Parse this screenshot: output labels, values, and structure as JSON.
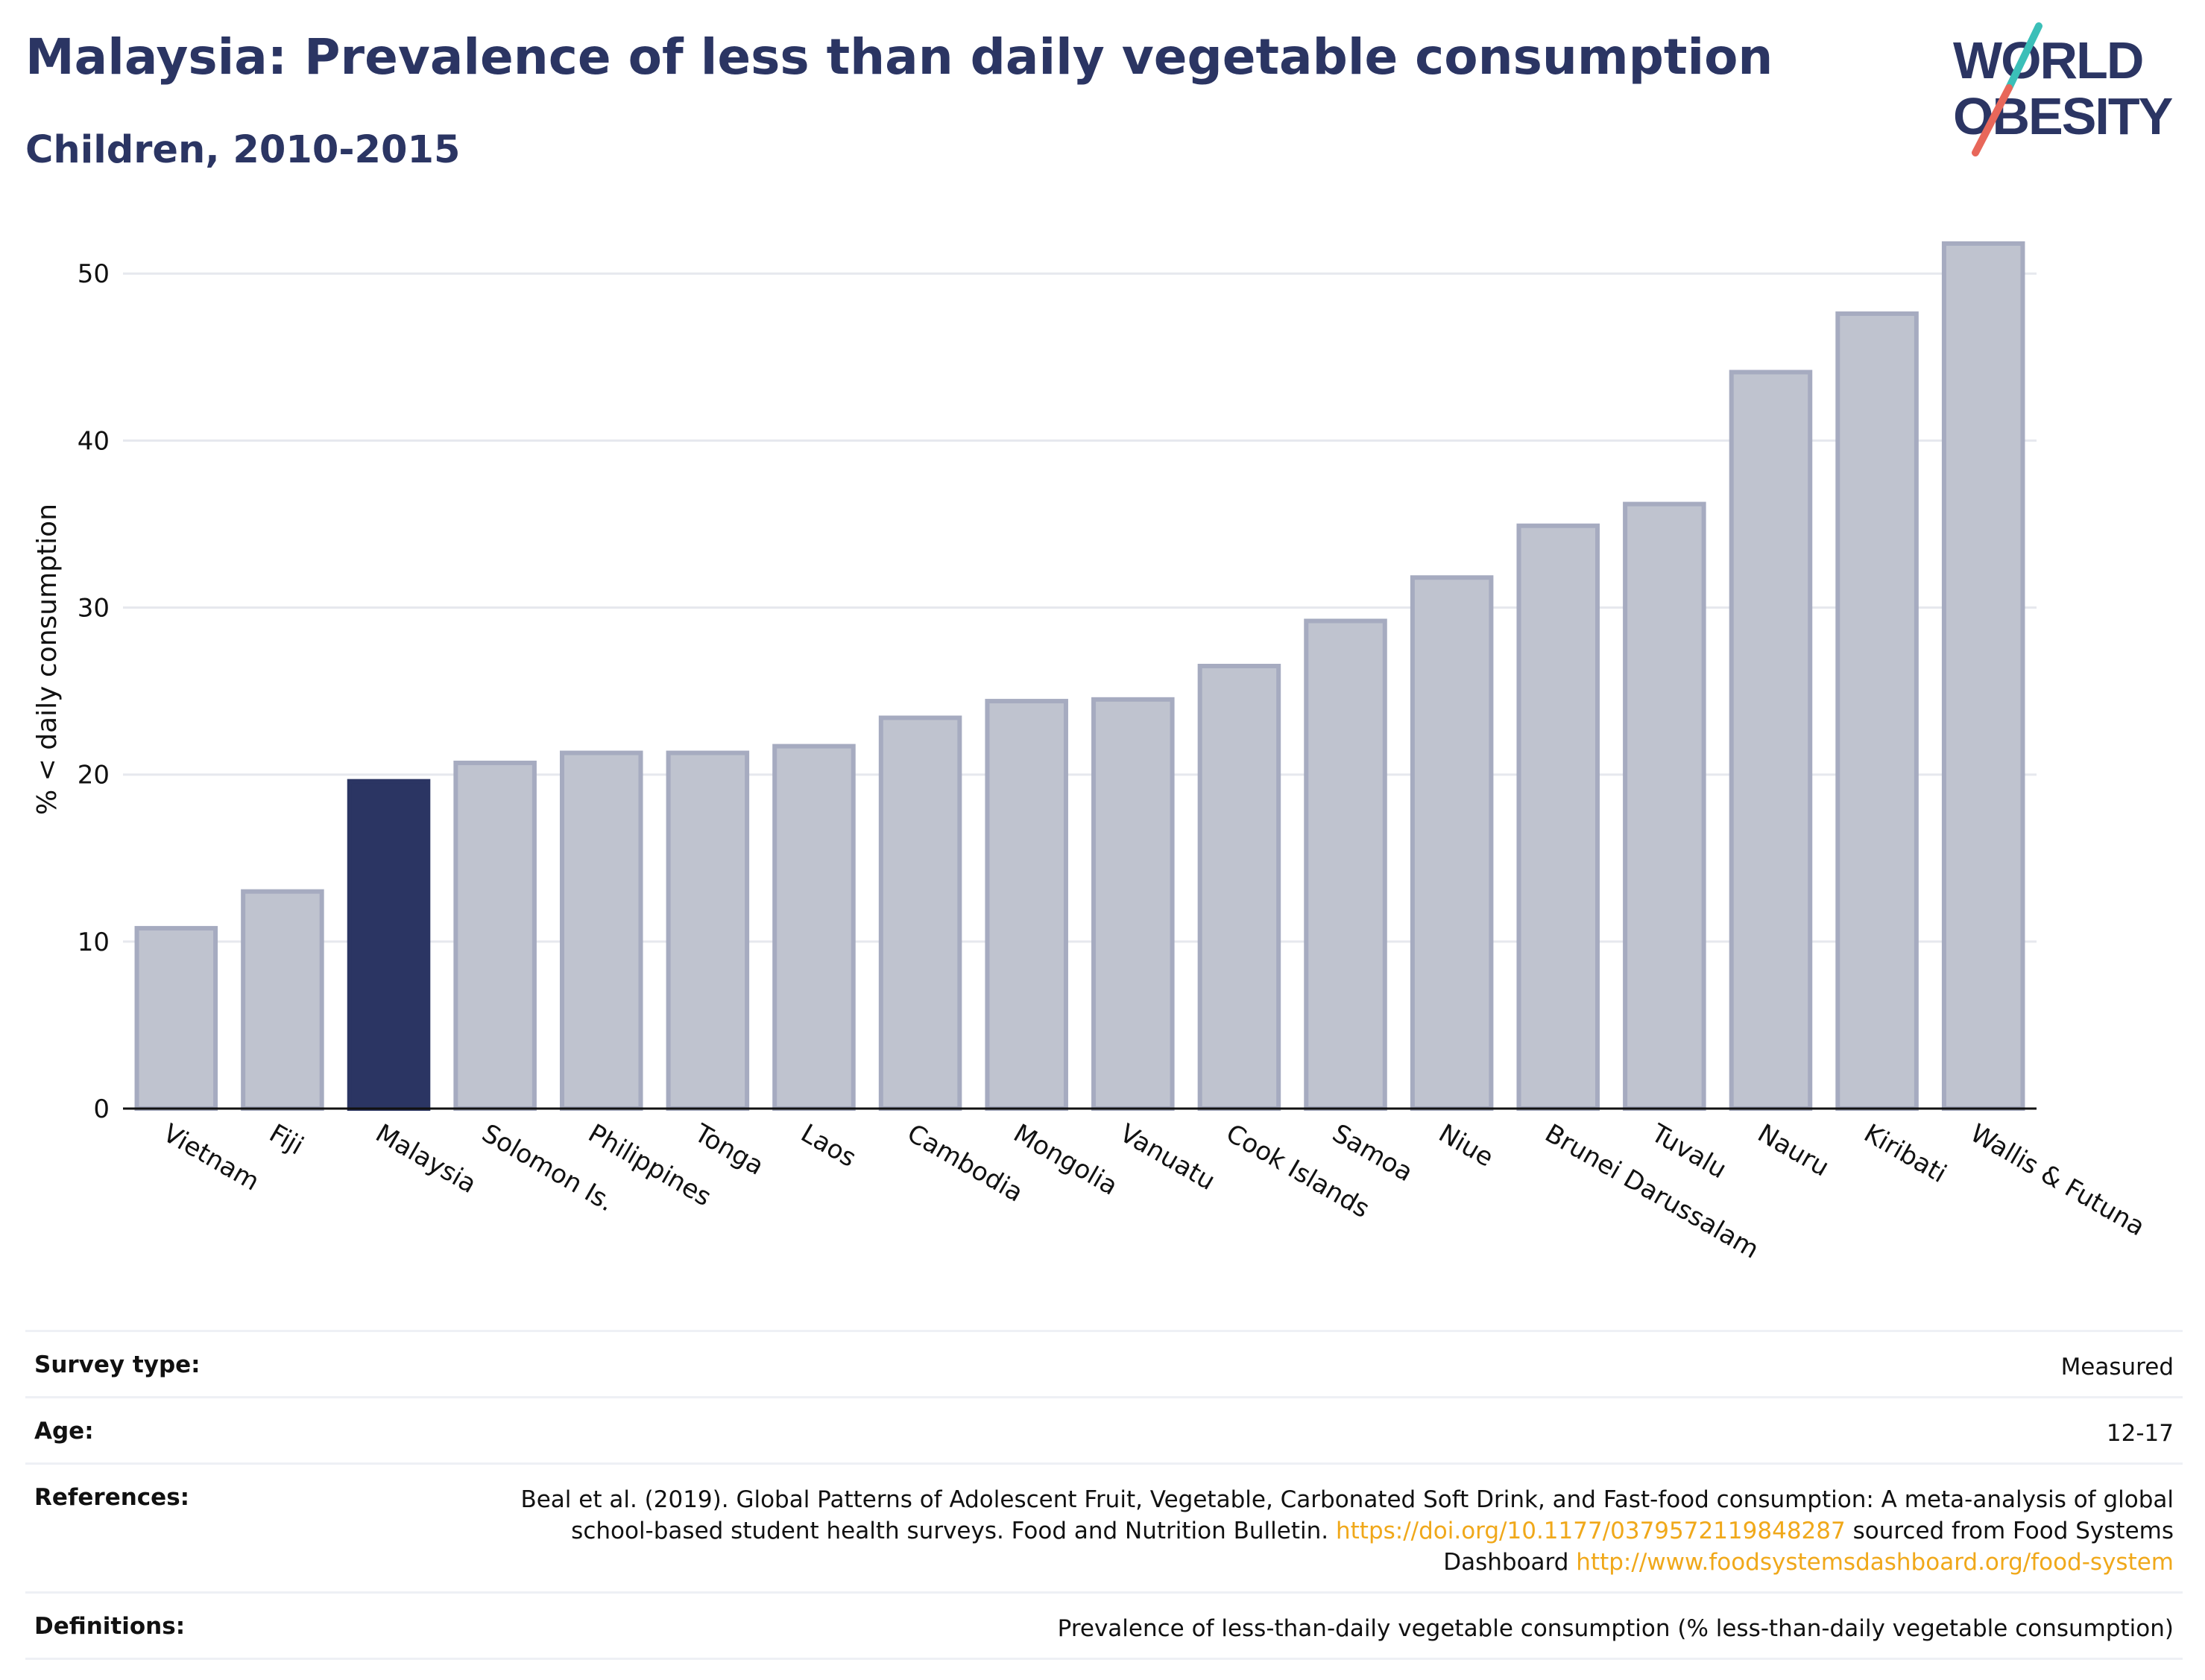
{
  "header": {
    "title": "Malaysia: Prevalence of less than daily vegetable consumption",
    "subtitle": "Children, 2010-2015"
  },
  "logo": {
    "line1": "WORLD",
    "line2": "OBESITY",
    "colors": {
      "text": "#2b3563",
      "slash_top": "#3bbfb8",
      "slash_bottom": "#e8675a"
    }
  },
  "colors": {
    "highlight": "#2b3563",
    "bar": "#bfc3cf",
    "bar_border": "#a6abc0",
    "grid": "#e6e8ee"
  },
  "chart_data": {
    "type": "bar",
    "ylabel": "% < daily consumption",
    "ylim": [
      0,
      53
    ],
    "yticks": [
      0,
      10,
      20,
      30,
      40,
      50
    ],
    "grid": true,
    "highlight": "Malaysia",
    "categories": [
      "Vietnam",
      "Fiji",
      "Malaysia",
      "Solomon Is.",
      "Philippines",
      "Tonga",
      "Laos",
      "Cambodia",
      "Mongolia",
      "Vanuatu",
      "Cook Islands",
      "Samoa",
      "Niue",
      "Brunei Darussalam",
      "Tuvalu",
      "Nauru",
      "Kiribati",
      "Wallis & Futuna"
    ],
    "values": [
      10.8,
      13.0,
      19.6,
      20.7,
      21.3,
      21.3,
      21.7,
      23.4,
      24.4,
      24.5,
      26.5,
      29.2,
      31.8,
      34.9,
      36.2,
      44.1,
      47.6,
      51.8
    ]
  },
  "meta": {
    "survey_label": "Survey type:",
    "survey_value": "Measured",
    "age_label": "Age:",
    "age_value": "12-17",
    "references_label": "References:",
    "references_text1": "Beal et al. (2019). Global Patterns of Adolescent Fruit, Vegetable, Carbonated Soft Drink, and Fast-food consumption: A meta-analysis of global school-based student health surveys. Food and Nutrition Bulletin. ",
    "references_link1": "https://doi.org/10.1177/0379572119848287",
    "references_text2": " sourced from Food Systems Dashboard ",
    "references_link2": "http://www.foodsystemsdashboard.org/food-system",
    "definitions_label": "Definitions:",
    "definitions_value": "Prevalence of less-than-daily vegetable consumption (% less-than-daily vegetable consumption)"
  }
}
